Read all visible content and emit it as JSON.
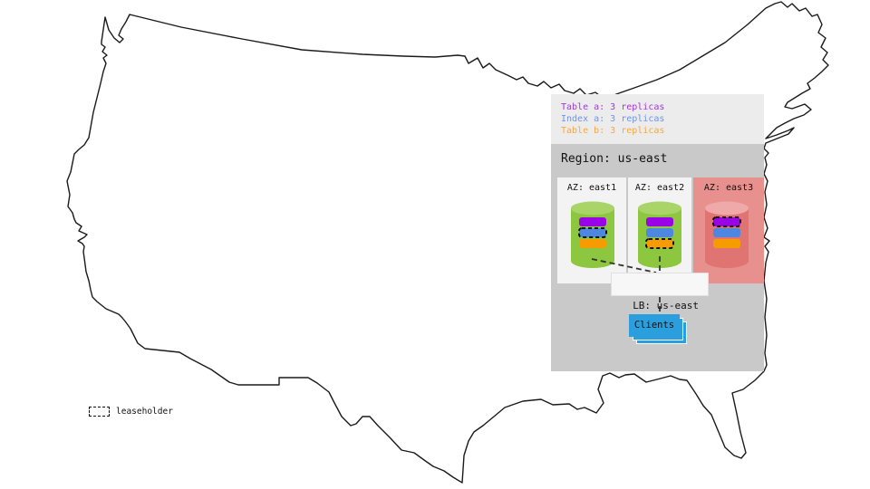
{
  "legend": {
    "items": [
      {
        "label": "Table a: 3 replicas",
        "color": "#A238DF"
      },
      {
        "label": "Index a: 3 replicas",
        "color": "#6E95EA"
      },
      {
        "label": "Table b: 3 replicas",
        "color": "#F7A83D"
      }
    ]
  },
  "region": {
    "title": "Region: us-east",
    "azs": [
      {
        "label": "AZ: east1",
        "bg_color": "#F3F3F3",
        "cylinder": {
          "body_color": "#8DC63F",
          "top_color": "#A9D467"
        },
        "replicas": [
          {
            "name": "table-a",
            "color": "#9903E6",
            "leaseholder": false
          },
          {
            "name": "index-a",
            "color": "#4E87DF",
            "leaseholder": true
          },
          {
            "name": "table-b",
            "color": "#F79C00",
            "leaseholder": false
          }
        ]
      },
      {
        "label": "AZ: east2",
        "bg_color": "#F3F3F3",
        "cylinder": {
          "body_color": "#8DC63F",
          "top_color": "#A9D467"
        },
        "replicas": [
          {
            "name": "table-a",
            "color": "#9903E6",
            "leaseholder": false
          },
          {
            "name": "index-a",
            "color": "#4E87DF",
            "leaseholder": false
          },
          {
            "name": "table-b",
            "color": "#F79C00",
            "leaseholder": true
          }
        ]
      },
      {
        "label": "AZ: east3",
        "bg_color": "#E8908E",
        "cylinder": {
          "body_color": "#E07472",
          "top_color": "#EFA9A9"
        },
        "replicas": [
          {
            "name": "table-a",
            "color": "#9903E6",
            "leaseholder": true
          },
          {
            "name": "index-a",
            "color": "#4E87DF",
            "leaseholder": false
          },
          {
            "name": "table-b",
            "color": "#F79C00",
            "leaseholder": false
          }
        ]
      }
    ]
  },
  "load_balancer": {
    "label": "LB: us-east"
  },
  "clients": {
    "label": "Clients",
    "color": "#2B9FDD"
  },
  "map_legend": {
    "leaseholder_label": "leaseholder"
  }
}
